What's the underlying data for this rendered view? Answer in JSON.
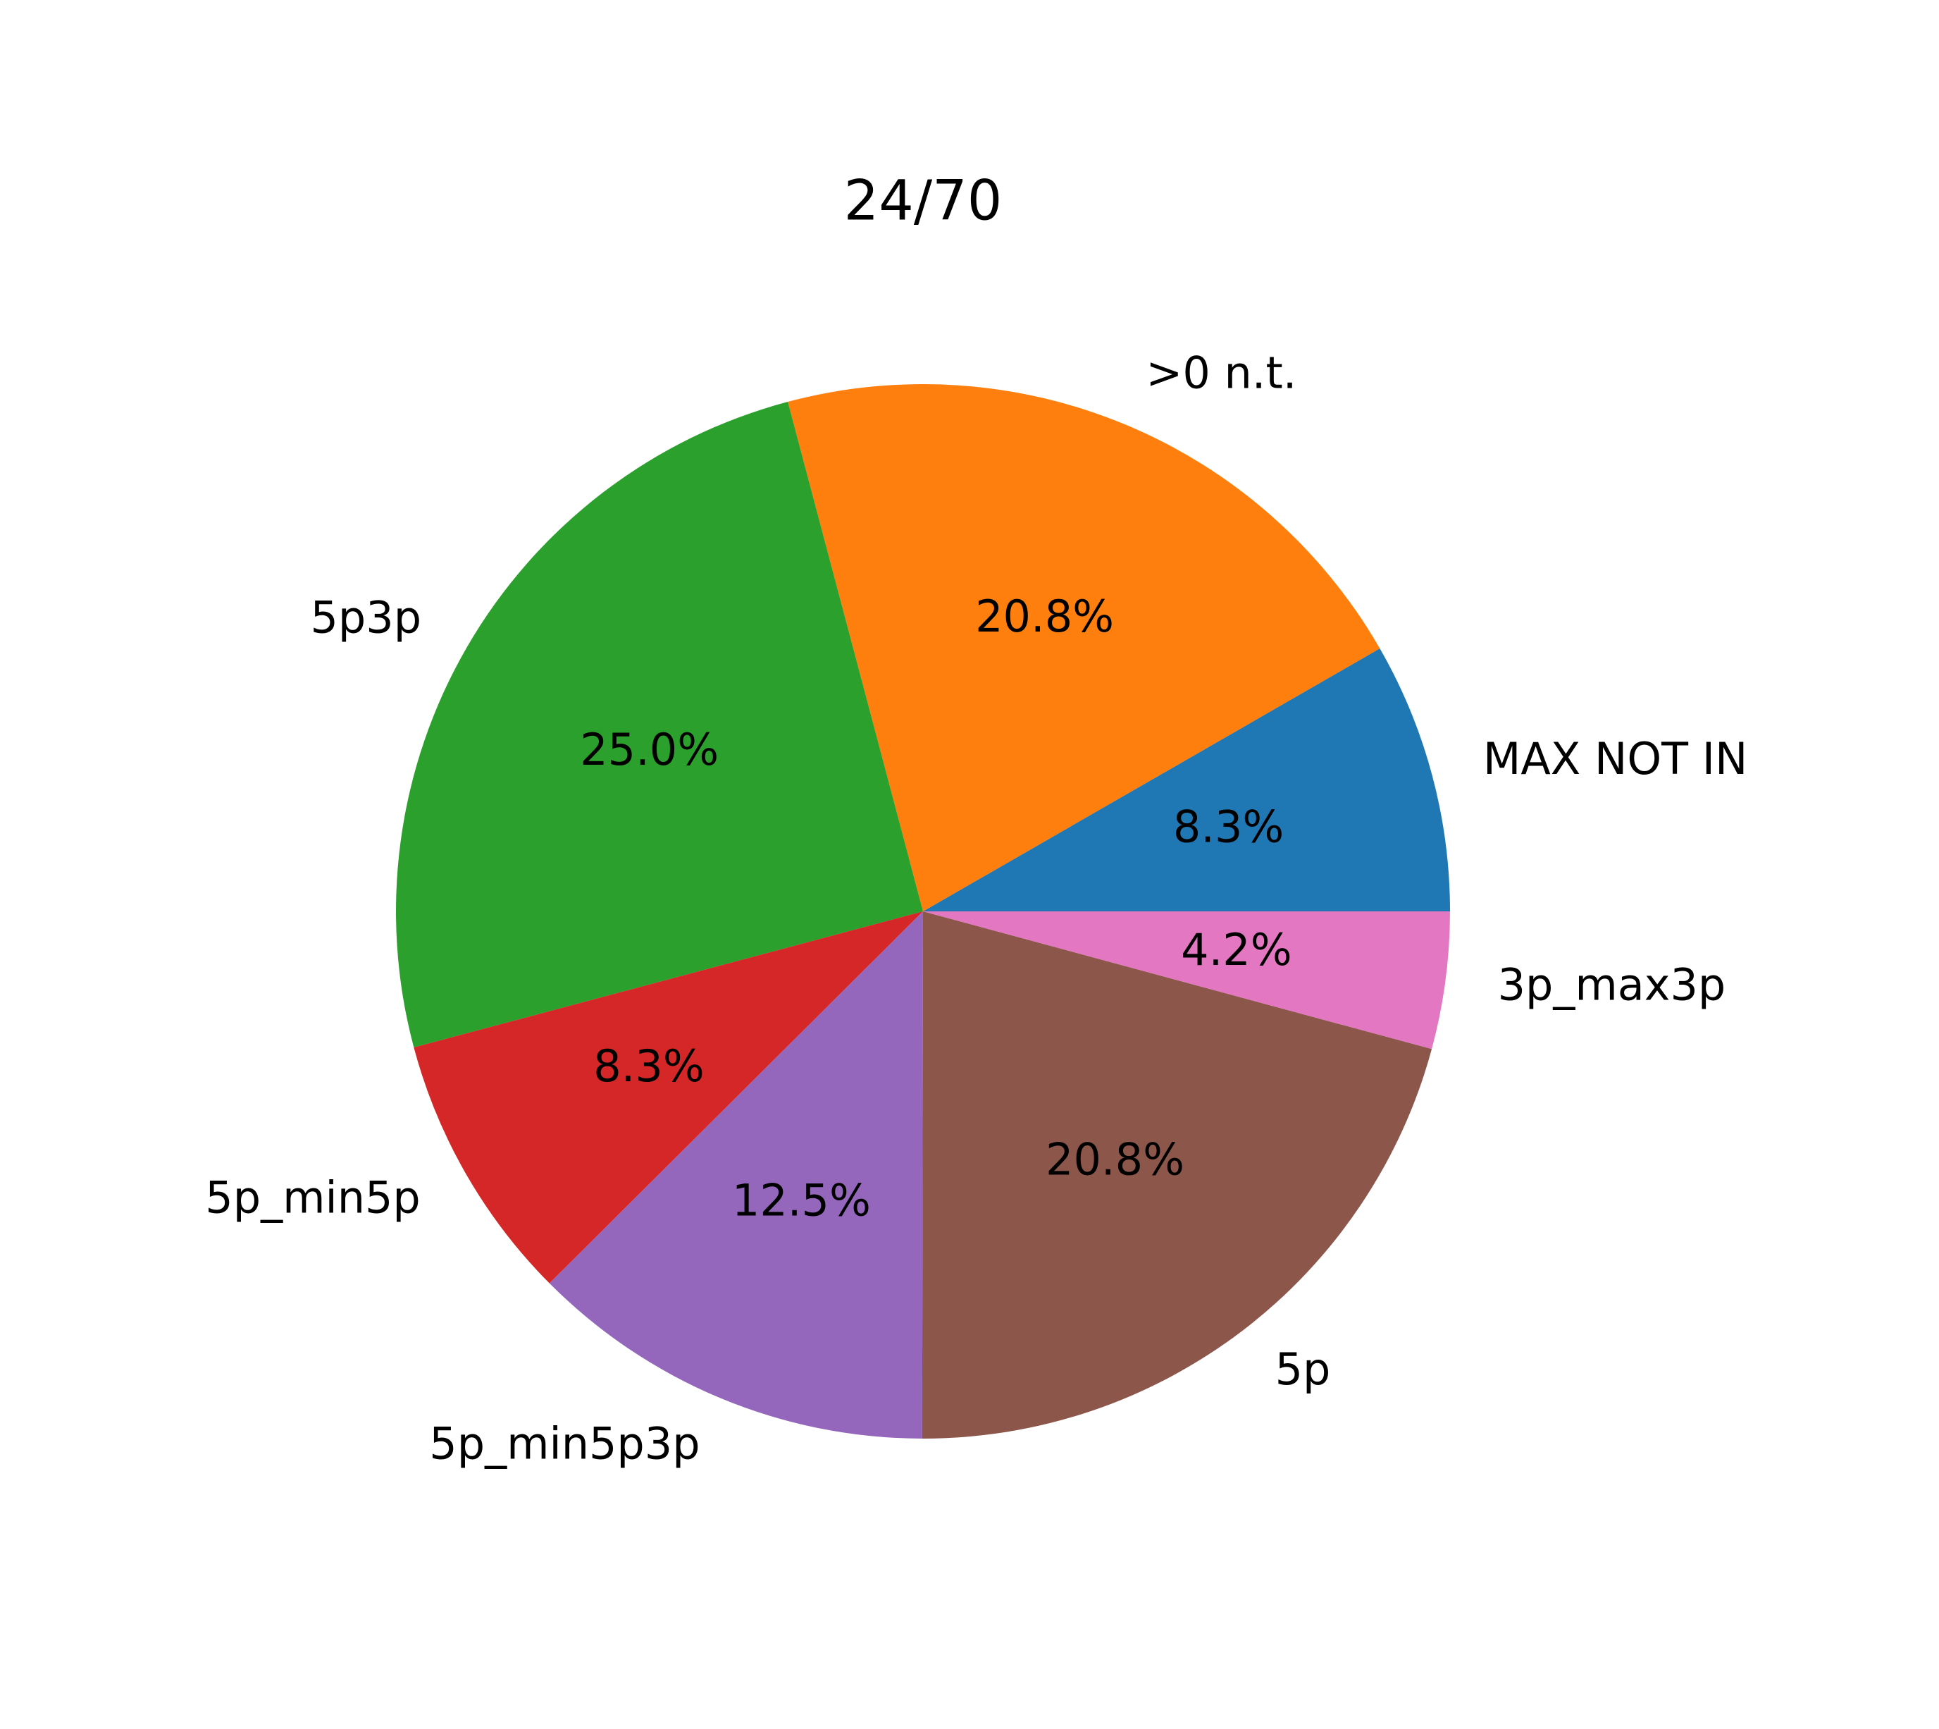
{
  "chart_data": {
    "type": "pie",
    "title": "24/70",
    "start_angle": 0,
    "direction": "counterclockwise",
    "legend": "none",
    "slices": [
      {
        "label": "MAX NOT IN",
        "value": 8.3,
        "pct_label": "8.3%",
        "color": "#1f77b4"
      },
      {
        "label": ">0 n.t.",
        "value": 20.8,
        "pct_label": "20.8%",
        "color": "#ff7f0e"
      },
      {
        "label": "5p3p",
        "value": 25.0,
        "pct_label": "25.0%",
        "color": "#2ca02c"
      },
      {
        "label": "5p_min5p",
        "value": 8.3,
        "pct_label": "8.3%",
        "color": "#d62728"
      },
      {
        "label": "5p_min5p3p",
        "value": 12.5,
        "pct_label": "12.5%",
        "color": "#9467bd"
      },
      {
        "label": "5p",
        "value": 20.8,
        "pct_label": "20.8%",
        "color": "#8c564b"
      },
      {
        "label": "3p_max3p",
        "value": 4.2,
        "pct_label": "4.2%",
        "color": "#e377c2"
      }
    ]
  }
}
